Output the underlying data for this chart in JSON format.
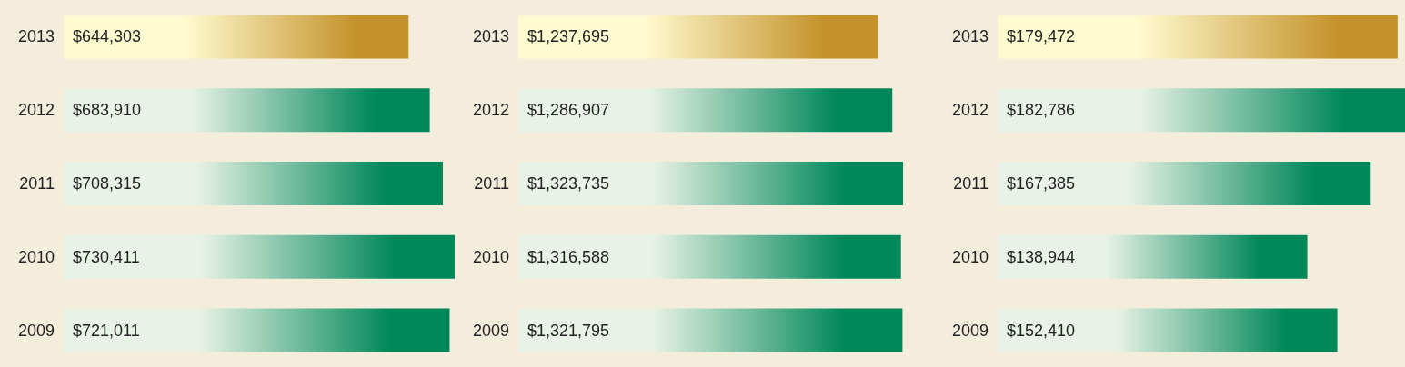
{
  "chart_data": [
    {
      "type": "bar",
      "orientation": "horizontal",
      "categories": [
        "2013",
        "2012",
        "2011",
        "2010",
        "2009"
      ],
      "values": [
        644303,
        683910,
        708315,
        730411,
        721011
      ],
      "value_labels": [
        "$644,303",
        "$683,910",
        "$708,315",
        "$730,411",
        "$721,011"
      ],
      "colors": [
        "#c4922a",
        "#00875a",
        "#00875a",
        "#00875a",
        "#00875a"
      ],
      "tick_labels": "y"
    },
    {
      "type": "bar",
      "orientation": "horizontal",
      "categories": [
        "2013",
        "2012",
        "2011",
        "2010",
        "2009"
      ],
      "values": [
        1237695,
        1286907,
        1323735,
        1316588,
        1321795
      ],
      "value_labels": [
        "$1,237,695",
        "$1,286,907",
        "$1,323,735",
        "$1,316,588",
        "$1,321,795"
      ],
      "colors": [
        "#c4922a",
        "#00875a",
        "#00875a",
        "#00875a",
        "#00875a"
      ],
      "tick_labels": "y"
    },
    {
      "type": "bar",
      "orientation": "horizontal",
      "categories": [
        "2013",
        "2012",
        "2011",
        "2010",
        "2009"
      ],
      "values": [
        179472,
        182786,
        167385,
        138944,
        152410
      ],
      "value_labels": [
        "$179,472",
        "$182,786",
        "$167,385",
        "$138,944",
        "$152,410"
      ],
      "colors": [
        "#c4922a",
        "#00875a",
        "#00875a",
        "#00875a",
        "#00875a"
      ],
      "tick_labels": "y"
    }
  ]
}
